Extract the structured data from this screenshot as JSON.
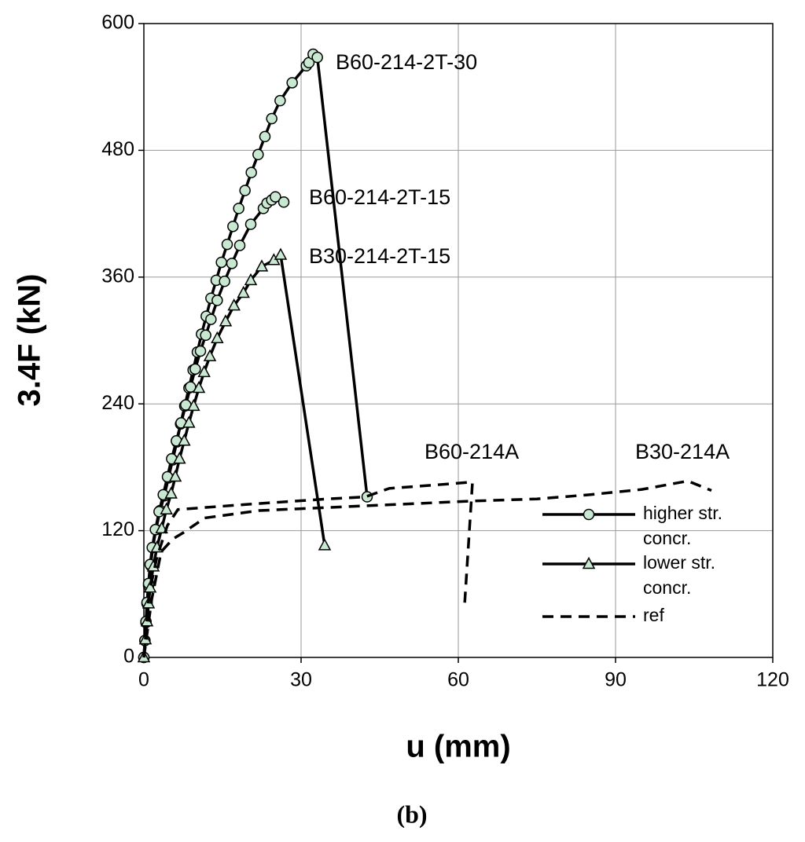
{
  "chart_data": {
    "type": "line",
    "x_label": "u (mm)",
    "y_label": "3.4F (kN)",
    "caption": "(b)",
    "xlim": [
      0,
      120
    ],
    "ylim": [
      0,
      600
    ],
    "xticks": [
      0,
      30,
      60,
      90,
      120
    ],
    "yticks": [
      0,
      120,
      240,
      360,
      480,
      600
    ],
    "grid": true,
    "series": [
      {
        "name": "B60-214-2T-30",
        "color": "#000000",
        "marker": "circle",
        "marker_fill": "#c9e8d2",
        "dashed": false,
        "x": [
          0,
          0.2,
          0.4,
          0.6,
          0.9,
          1.3,
          1.7,
          2.3,
          3.1,
          3.9,
          4.7,
          5.5,
          6.3,
          7.0,
          7.8,
          8.6,
          9.4,
          10.2,
          11.0,
          11.9,
          12.8,
          13.8,
          14.8,
          15.9,
          17.0,
          18.1,
          19.3,
          20.5,
          21.8,
          23.1,
          24.4,
          26.0,
          28.3,
          31.0,
          31.5,
          32.3,
          33.1,
          42.6
        ],
        "y": [
          0,
          16,
          33,
          51,
          68,
          87,
          104,
          121,
          139,
          153,
          170,
          187,
          204,
          221,
          238,
          255,
          272,
          289,
          306,
          323,
          340,
          357,
          374,
          391,
          408,
          425,
          442,
          459,
          476,
          493,
          510,
          527,
          544,
          560,
          563,
          571,
          568,
          152
        ]
      },
      {
        "name": "B60-214-2T-15",
        "color": "#000000",
        "marker": "circle",
        "marker_fill": "#c9e8d2",
        "dashed": false,
        "x": [
          0,
          0.2,
          0.4,
          0.6,
          0.9,
          1.2,
          1.6,
          2.2,
          2.9,
          3.7,
          4.5,
          5.3,
          6.2,
          7.1,
          8.0,
          8.9,
          9.8,
          10.8,
          11.8,
          12.8,
          14.0,
          15.4,
          16.8,
          18.3,
          20.4,
          22.8,
          23.5,
          24.4,
          25.1,
          26.7
        ],
        "y": [
          0,
          16,
          34,
          52,
          70,
          88,
          104,
          121,
          138,
          154,
          171,
          188,
          205,
          222,
          239,
          256,
          273,
          290,
          305,
          320,
          338,
          356,
          373,
          390,
          410,
          425,
          430,
          433,
          436,
          431
        ]
      },
      {
        "name": "B30-214-2T-15",
        "color": "#000000",
        "marker": "triangle",
        "marker_fill": "#c9e8d2",
        "dashed": false,
        "x": [
          0,
          0.3,
          0.6,
          0.9,
          1.2,
          1.8,
          2.5,
          3.4,
          4.3,
          5.2,
          6.0,
          6.8,
          7.7,
          8.6,
          9.5,
          10.5,
          11.5,
          12.6,
          14.0,
          15.6,
          17.2,
          19.0,
          20.4,
          22.5,
          24.8,
          26.1,
          34.5
        ],
        "y": [
          0,
          17,
          34,
          51,
          66,
          86,
          104,
          122,
          140,
          155,
          171,
          188,
          205,
          222,
          238,
          255,
          270,
          285,
          302,
          318,
          333,
          345,
          357,
          370,
          376,
          381,
          106
        ]
      },
      {
        "name": "B60-214A",
        "color": "#000000",
        "marker": "none",
        "dashed": true,
        "x": [
          0,
          1,
          2.5,
          4.5,
          6.5,
          20,
          35,
          42.3,
          46.8,
          55,
          62.7,
          62.5,
          61.2
        ],
        "y": [
          0,
          60,
          95,
          125,
          140,
          145,
          150,
          152,
          160,
          163,
          166,
          150,
          50
        ]
      },
      {
        "name": "B30-214A",
        "color": "#000000",
        "marker": "none",
        "dashed": true,
        "x": [
          0,
          1.5,
          3.3,
          5.5,
          7.5,
          11.6,
          22,
          40,
          62.5,
          75,
          85,
          95,
          103.8,
          108.3
        ],
        "y": [
          0,
          55,
          100,
          112,
          118,
          132,
          139,
          143,
          148,
          150,
          154,
          159,
          167,
          158
        ]
      }
    ],
    "legend": [
      {
        "lines": [
          "higher str.",
          "concr."
        ],
        "marker": "circle",
        "dashed": false
      },
      {
        "lines": [
          "lower str.",
          "concr."
        ],
        "marker": "triangle",
        "dashed": false
      },
      {
        "lines": [
          "ref"
        ],
        "marker": "none",
        "dashed": true
      }
    ]
  }
}
